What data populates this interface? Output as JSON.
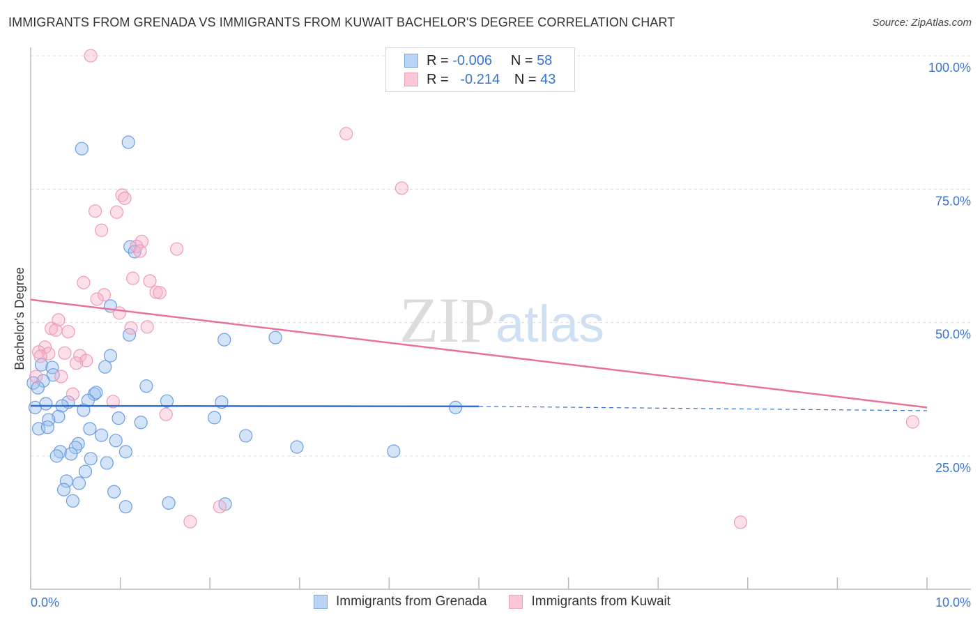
{
  "header": {
    "title": "IMMIGRANTS FROM GRENADA VS IMMIGRANTS FROM KUWAIT BACHELOR'S DEGREE CORRELATION CHART",
    "source": "Source: ZipAtlas.com"
  },
  "watermark": "ZIPatlas",
  "legend": {
    "rows": [
      {
        "r_label": "R =",
        "r_value": "-0.006",
        "n_label": "N =",
        "n_value": "58"
      },
      {
        "r_label": "R =",
        "r_value": "-0.214",
        "n_label": "N =",
        "n_value": "43"
      }
    ]
  },
  "colors": {
    "grenada_fill": "#a9c8f0",
    "grenada_stroke": "#6b9de0",
    "grenada_line": "#2f6fd3",
    "kuwait_fill": "#f7bcd0",
    "kuwait_stroke": "#ee9bb9",
    "kuwait_line": "#e8719b",
    "axis_label": "#3a73d0"
  },
  "chart_data": {
    "type": "scatter",
    "title": "IMMIGRANTS FROM GRENADA VS IMMIGRANTS FROM KUWAIT BACHELOR'S DEGREE CORRELATION CHART",
    "xlabel": "",
    "ylabel": "Bachelor's Degree",
    "xlim": [
      0,
      10
    ],
    "ylim": [
      0,
      100
    ],
    "x_tick_labels": [
      "0.0%",
      "10.0%"
    ],
    "y_ticks": [
      25,
      50,
      75,
      100
    ],
    "y_tick_labels": [
      "25.0%",
      "50.0%",
      "75.0%",
      "100.0%"
    ],
    "grid": true,
    "legend_position": "bottom",
    "series": [
      {
        "name": "Immigrants from Grenada",
        "r": -0.006,
        "n": 58,
        "trend": {
          "x": [
            0,
            5
          ],
          "y": [
            34.4,
            34.3
          ],
          "dashed_to": [
            10,
            33.5
          ]
        },
        "points": [
          [
            0.57,
            82.6
          ],
          [
            1.09,
            83.8
          ],
          [
            1.11,
            64.2
          ],
          [
            1.16,
            63.3
          ],
          [
            0.89,
            53.1
          ],
          [
            1.1,
            47.7
          ],
          [
            2.16,
            46.8
          ],
          [
            2.73,
            47.2
          ],
          [
            0.89,
            43.8
          ],
          [
            0.83,
            41.7
          ],
          [
            0.12,
            42.1
          ],
          [
            0.24,
            41.6
          ],
          [
            0.25,
            40.2
          ],
          [
            0.14,
            39.1
          ],
          [
            0.03,
            38.7
          ],
          [
            0.08,
            37.8
          ],
          [
            1.29,
            38.1
          ],
          [
            0.71,
            36.6
          ],
          [
            0.73,
            36.9
          ],
          [
            0.64,
            35.4
          ],
          [
            0.42,
            35.1
          ],
          [
            0.17,
            34.8
          ],
          [
            0.35,
            34.4
          ],
          [
            0.05,
            34.1
          ],
          [
            1.52,
            35.3
          ],
          [
            2.13,
            35.1
          ],
          [
            4.74,
            34.1
          ],
          [
            0.59,
            33.6
          ],
          [
            0.31,
            32.4
          ],
          [
            0.2,
            31.8
          ],
          [
            0.98,
            32.1
          ],
          [
            1.23,
            31.3
          ],
          [
            2.05,
            32.2
          ],
          [
            0.09,
            30.1
          ],
          [
            0.19,
            30.4
          ],
          [
            0.66,
            30.1
          ],
          [
            0.79,
            28.9
          ],
          [
            2.4,
            28.8
          ],
          [
            0.95,
            27.9
          ],
          [
            0.53,
            27.3
          ],
          [
            0.5,
            26.6
          ],
          [
            2.97,
            26.7
          ],
          [
            4.05,
            25.9
          ],
          [
            0.33,
            25.8
          ],
          [
            1.06,
            25.8
          ],
          [
            0.45,
            25.4
          ],
          [
            0.29,
            25.0
          ],
          [
            0.67,
            24.5
          ],
          [
            0.85,
            23.7
          ],
          [
            0.61,
            22.1
          ],
          [
            0.4,
            20.3
          ],
          [
            0.54,
            19.9
          ],
          [
            0.37,
            18.7
          ],
          [
            0.93,
            18.3
          ],
          [
            0.47,
            16.6
          ],
          [
            1.54,
            16.2
          ],
          [
            2.17,
            16.0
          ],
          [
            1.06,
            15.5
          ]
        ]
      },
      {
        "name": "Immigrants from Kuwait",
        "r": -0.214,
        "n": 43,
        "trend": {
          "x": [
            0,
            10
          ],
          "y": [
            54.3,
            34.1
          ]
        },
        "points": [
          [
            0.67,
            100.0
          ],
          [
            3.52,
            85.4
          ],
          [
            4.14,
            75.2
          ],
          [
            1.02,
            73.9
          ],
          [
            1.05,
            73.3
          ],
          [
            0.72,
            70.9
          ],
          [
            0.96,
            70.7
          ],
          [
            0.79,
            67.3
          ],
          [
            1.24,
            65.2
          ],
          [
            1.18,
            64.3
          ],
          [
            1.22,
            63.4
          ],
          [
            1.63,
            63.8
          ],
          [
            0.59,
            57.5
          ],
          [
            1.14,
            58.3
          ],
          [
            1.33,
            57.8
          ],
          [
            1.4,
            55.7
          ],
          [
            1.44,
            55.6
          ],
          [
            0.82,
            55.2
          ],
          [
            0.74,
            54.4
          ],
          [
            0.99,
            51.8
          ],
          [
            0.31,
            50.5
          ],
          [
            0.23,
            48.9
          ],
          [
            0.28,
            48.6
          ],
          [
            0.42,
            48.3
          ],
          [
            1.3,
            49.2
          ],
          [
            1.12,
            49.0
          ],
          [
            0.16,
            45.4
          ],
          [
            0.09,
            44.5
          ],
          [
            0.2,
            44.2
          ],
          [
            0.38,
            44.3
          ],
          [
            0.11,
            43.7
          ],
          [
            0.55,
            43.8
          ],
          [
            0.62,
            42.9
          ],
          [
            0.51,
            42.4
          ],
          [
            0.34,
            39.9
          ],
          [
            0.06,
            39.9
          ],
          [
            0.47,
            36.6
          ],
          [
            0.92,
            35.2
          ],
          [
            1.51,
            32.8
          ],
          [
            1.78,
            12.7
          ],
          [
            2.11,
            15.5
          ],
          [
            7.92,
            12.6
          ],
          [
            9.84,
            31.4
          ]
        ]
      }
    ]
  }
}
